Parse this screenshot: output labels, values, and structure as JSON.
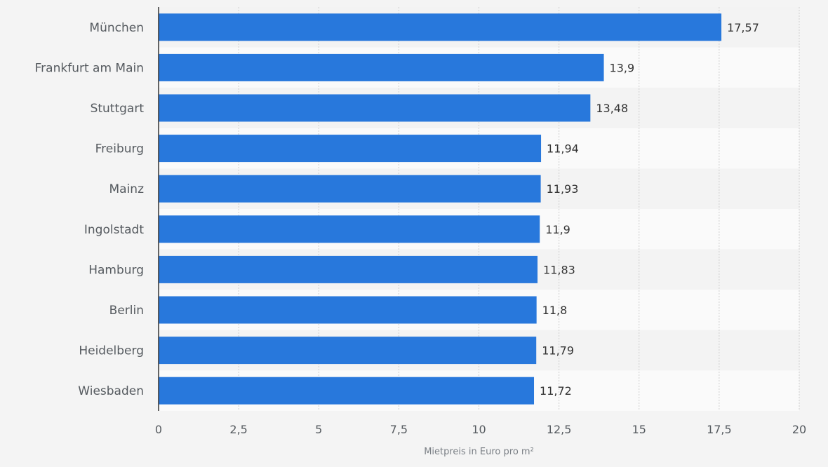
{
  "chart_data": {
    "type": "bar",
    "orientation": "horizontal",
    "categories": [
      "München",
      "Frankfurt am Main",
      "Stuttgart",
      "Freiburg",
      "Mainz",
      "Ingolstadt",
      "Hamburg",
      "Berlin",
      "Heidelberg",
      "Wiesbaden"
    ],
    "values": [
      17.57,
      13.9,
      13.48,
      11.94,
      11.93,
      11.9,
      11.83,
      11.8,
      11.79,
      11.72
    ],
    "value_labels": [
      "17,57",
      "13,9",
      "13,48",
      "11,94",
      "11,93",
      "11,9",
      "11,83",
      "11,8",
      "11,79",
      "11,72"
    ],
    "xlabel": "Mietpreis in Euro pro m²",
    "xlim": [
      0,
      20
    ],
    "x_ticks": [
      0,
      2.5,
      5,
      7.5,
      10,
      12.5,
      15,
      17.5,
      20
    ],
    "x_tick_labels": [
      "0",
      "2,5",
      "5",
      "7,5",
      "10",
      "12,5",
      "15",
      "17,5",
      "20"
    ],
    "grid": "vertical dotted",
    "colors": {
      "bar": "#2878dc",
      "band_light": "#fafafa",
      "band_dark": "#f3f3f3",
      "grid": "#cfcfcf",
      "axis": "#333333"
    }
  }
}
